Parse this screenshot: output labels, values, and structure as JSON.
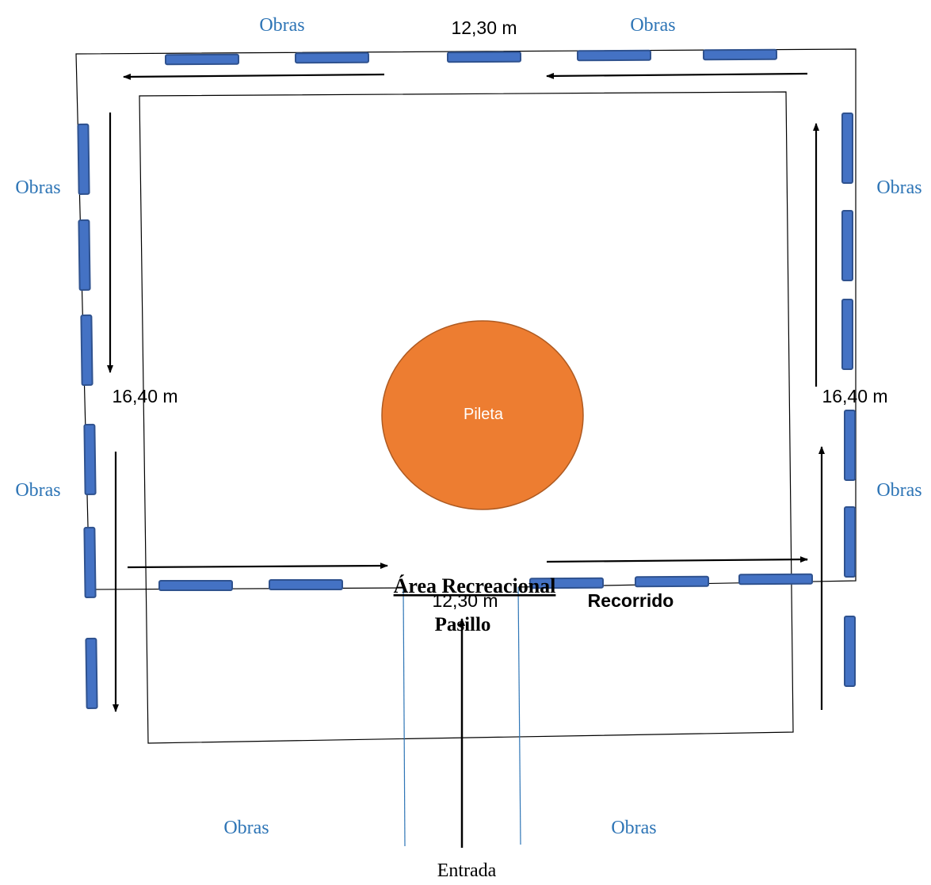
{
  "colors": {
    "obras_text": "#2e75b6",
    "obras_block": "#4472c4",
    "obras_block_border": "#2f528f",
    "pileta_fill": "#ed7d31",
    "pileta_border": "#ae5a21",
    "lines": "#000000"
  },
  "labels": {
    "obras_top_left": "Obras",
    "obras_top_right": "Obras",
    "obras_left_upper": "Obras",
    "obras_left_lower": "Obras",
    "obras_right_upper": "Obras",
    "obras_right_lower": "Obras",
    "obras_bottom_left": "Obras",
    "obras_bottom_right": "Obras",
    "dim_top": "12,30 m",
    "dim_bottom": "12,30 m",
    "dim_left": "16,40 m",
    "dim_right": "16,40 m",
    "pileta": "Pileta",
    "area": "Área Recreacional",
    "recorrido": "Recorrido",
    "pasillo": "Pasillo",
    "entrada": "Entrada"
  }
}
